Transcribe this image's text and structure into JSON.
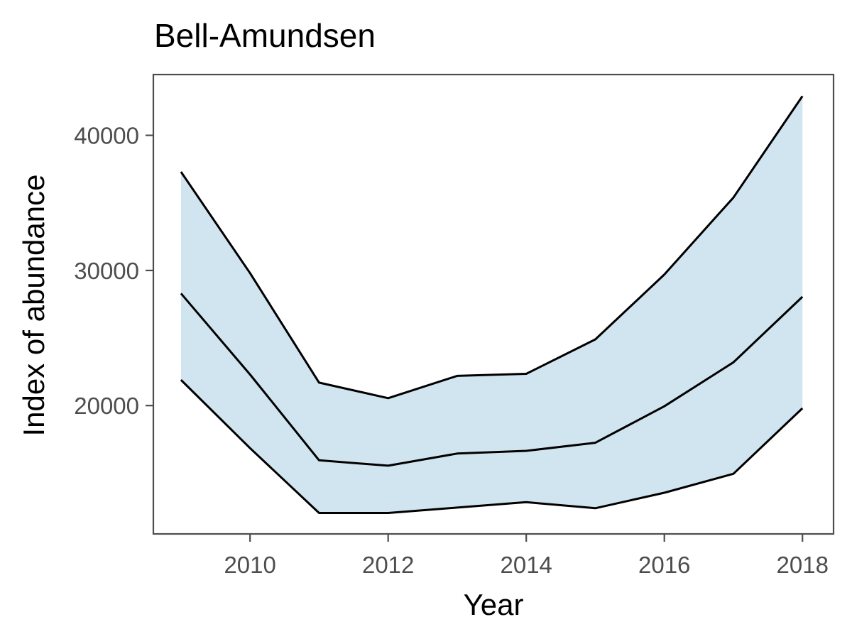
{
  "chart_data": {
    "type": "line",
    "title": "Bell-Amundsen",
    "xlabel": "Year",
    "ylabel": "Index of abundance",
    "x": [
      2009,
      2010,
      2011,
      2012,
      2013,
      2014,
      2015,
      2016,
      2017,
      2018
    ],
    "series": [
      {
        "values": [
          37300,
          29800,
          21700,
          20550,
          22200,
          22350,
          24900,
          29700,
          35400,
          42900
        ]
      },
      {
        "values": [
          28300,
          22300,
          15950,
          15550,
          16450,
          16650,
          17250,
          19950,
          23200,
          28050
        ]
      },
      {
        "values": [
          21900,
          16850,
          12050,
          12050,
          12450,
          12850,
          12400,
          13550,
          14950,
          19800
        ]
      }
    ],
    "xlim": [
      2008.6,
      2018.45
    ],
    "ylim": [
      10500,
      44500
    ],
    "xticks": [
      2010,
      2012,
      2014,
      2016,
      2018
    ],
    "yticks": [
      20000,
      30000,
      40000
    ],
    "xtick_labels": [
      "2010",
      "2012",
      "2014",
      "2016",
      "2018"
    ],
    "ytick_labels": [
      "20000",
      "30000",
      "40000"
    ],
    "grid": false,
    "legend": "none",
    "colors": {
      "ribbon": "#d1e5f0",
      "line": "#000000",
      "axis_text": "#4d4d4d",
      "border": "#4d4d4d"
    }
  }
}
